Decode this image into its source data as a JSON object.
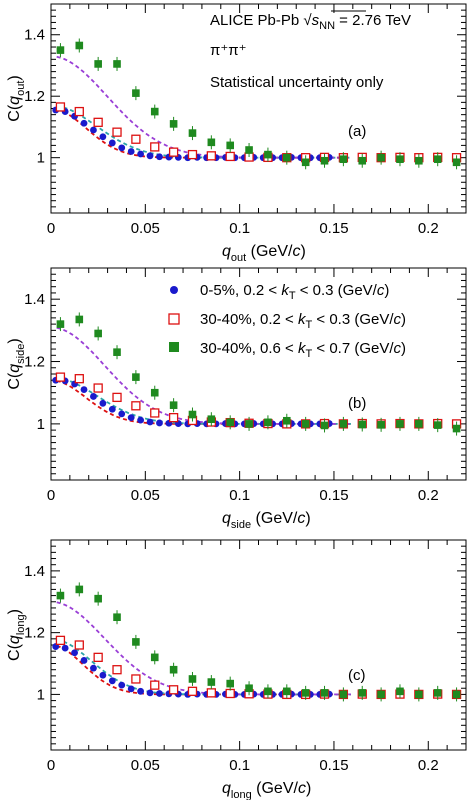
{
  "header": {
    "line1_prefix": "ALICE Pb-Pb ",
    "sqrt_symbol": "√",
    "sqrt_s": "s",
    "sqrt_sub": "NN",
    "line1_suffix": " = 2.76 TeV",
    "line2": "π⁺π⁺",
    "line3": "Statistical uncertainty only"
  },
  "legend": [
    {
      "label": "0-5%, 0.2 < ",
      "kt": "k",
      "kt_sub": "T",
      "range": " < 0.3 (GeV/",
      "c": "c",
      "close": ")",
      "marker": "filled-circle",
      "color": "#1a1acc"
    },
    {
      "label": "30-40%, 0.2 < ",
      "kt": "k",
      "kt_sub": "T",
      "range": " < 0.3 (GeV/",
      "c": "c",
      "close": ")",
      "marker": "open-square",
      "color": "#dd1111"
    },
    {
      "label": "30-40%, 0.6 < ",
      "kt": "k",
      "kt_sub": "T",
      "range": " < 0.7 (GeV/",
      "c": "c",
      "close": ")",
      "marker": "filled-square",
      "color": "#1f8a1f"
    }
  ],
  "colors": {
    "series0": "#1a1acc",
    "series1": "#dd1111",
    "series2": "#1f8a1f",
    "fit_cyan": "#2aa5a8",
    "fit_violet": "#9a3fd6",
    "fit_red": "#dd1111"
  },
  "chart_data": [
    {
      "type": "scatter",
      "panel_tag": "(a)",
      "ylabel": {
        "main": "C(",
        "var": "q",
        "sub": "out",
        "close": ")"
      },
      "xlabel": {
        "var": "q",
        "sub": "out",
        "unit": " (GeV/",
        "c": "c",
        "close": ")"
      },
      "xlim": [
        0,
        0.22
      ],
      "ylim": [
        0.82,
        1.5
      ],
      "xticks": [
        "0",
        "0.05",
        "0.1",
        "0.15",
        "0.2"
      ],
      "xtick_values": [
        0,
        0.05,
        0.1,
        0.15,
        0.2
      ],
      "yticks": [
        "1",
        "1.2",
        "1.4"
      ],
      "ytick_values": [
        1.0,
        1.2,
        1.4
      ],
      "series": [
        {
          "marker": "filled-circle",
          "color": "#1a1acc",
          "x": [
            0.0025,
            0.0075,
            0.0125,
            0.0175,
            0.0225,
            0.0275,
            0.0325,
            0.0375,
            0.0425,
            0.0475,
            0.0525,
            0.0575,
            0.0625,
            0.0675,
            0.0725,
            0.0775,
            0.0825,
            0.0875,
            0.0925,
            0.0975,
            0.1025,
            0.1075,
            0.1125,
            0.1175,
            0.1225,
            0.1275,
            0.1325,
            0.1375,
            0.1425,
            0.1475
          ],
          "y": [
            1.155,
            1.15,
            1.135,
            1.112,
            1.09,
            1.068,
            1.048,
            1.032,
            1.02,
            1.012,
            1.006,
            1.003,
            1.002,
            1.001,
            1.0,
            1.001,
            1.0,
            1.0,
            1.001,
            1.0,
            1.0,
            1.001,
            1.0,
            1.0,
            1.0,
            1.001,
            1.0,
            1.0,
            1.0,
            1.001
          ]
        },
        {
          "marker": "open-square",
          "color": "#dd1111",
          "x": [
            0.005,
            0.015,
            0.025,
            0.035,
            0.045,
            0.055,
            0.065,
            0.075,
            0.085,
            0.095,
            0.105,
            0.115,
            0.125,
            0.135,
            0.145,
            0.155,
            0.165,
            0.175,
            0.185,
            0.195,
            0.205,
            0.215
          ],
          "y": [
            1.165,
            1.15,
            1.115,
            1.083,
            1.06,
            1.035,
            1.018,
            1.01,
            1.006,
            1.004,
            1.002,
            1.001,
            1.0,
            1.0,
            1.001,
            1.0,
            1.001,
            1.0,
            1.001,
            1.0,
            1.001,
            1.0
          ]
        },
        {
          "marker": "filled-square",
          "color": "#1f8a1f",
          "x": [
            0.005,
            0.015,
            0.025,
            0.035,
            0.045,
            0.055,
            0.065,
            0.075,
            0.085,
            0.095,
            0.105,
            0.115,
            0.125,
            0.135,
            0.145,
            0.155,
            0.165,
            0.175,
            0.185,
            0.195,
            0.205,
            0.215
          ],
          "y": [
            1.35,
            1.365,
            1.305,
            1.305,
            1.21,
            1.15,
            1.11,
            1.08,
            1.05,
            1.04,
            1.025,
            1.01,
            1.0,
            0.985,
            0.99,
            0.995,
            0.99,
            1.0,
            0.995,
            0.99,
            0.995,
            0.985
          ]
        }
      ],
      "fits": [
        {
          "color": "#dd1111",
          "y0": 1.16,
          "r": 0.026
        },
        {
          "color": "#2aa5a8",
          "y0": 1.17,
          "r": 0.034
        },
        {
          "color": "#9a3fd6",
          "y0": 1.33,
          "r": 0.042
        }
      ]
    },
    {
      "type": "scatter",
      "panel_tag": "(b)",
      "ylabel": {
        "main": "C(",
        "var": "q",
        "sub": "side",
        "close": ")"
      },
      "xlabel": {
        "var": "q",
        "sub": "side",
        "unit": " (GeV/",
        "c": "c",
        "close": ")"
      },
      "xlim": [
        0,
        0.22
      ],
      "ylim": [
        0.82,
        1.5
      ],
      "xticks": [
        "0",
        "0.05",
        "0.1",
        "0.15",
        "0.2"
      ],
      "xtick_values": [
        0,
        0.05,
        0.1,
        0.15,
        0.2
      ],
      "yticks": [
        "1",
        "1.2",
        "1.4"
      ],
      "ytick_values": [
        1.0,
        1.2,
        1.4
      ],
      "series": [
        {
          "marker": "filled-circle",
          "color": "#1a1acc",
          "x": [
            0.0025,
            0.0075,
            0.0125,
            0.0175,
            0.0225,
            0.0275,
            0.0325,
            0.0375,
            0.0425,
            0.0475,
            0.0525,
            0.0575,
            0.0625,
            0.0675,
            0.0725,
            0.0775,
            0.0825,
            0.0875,
            0.0925,
            0.0975,
            0.1025,
            0.1075,
            0.1125,
            0.1175,
            0.1225,
            0.1275,
            0.1325,
            0.1375,
            0.1425,
            0.1475
          ],
          "y": [
            1.14,
            1.138,
            1.128,
            1.11,
            1.088,
            1.066,
            1.047,
            1.032,
            1.02,
            1.012,
            1.006,
            1.003,
            1.002,
            1.001,
            1.0,
            1.001,
            1.0,
            1.0,
            1.001,
            1.0,
            1.0,
            1.001,
            1.0,
            1.0,
            1.0,
            1.001,
            1.0,
            1.0,
            1.0,
            1.001
          ]
        },
        {
          "marker": "open-square",
          "color": "#dd1111",
          "x": [
            0.005,
            0.015,
            0.025,
            0.035,
            0.045,
            0.055,
            0.065,
            0.075,
            0.085,
            0.095,
            0.105,
            0.115,
            0.125,
            0.135,
            0.145,
            0.155,
            0.165,
            0.175,
            0.185,
            0.195,
            0.205,
            0.215
          ],
          "y": [
            1.15,
            1.145,
            1.115,
            1.085,
            1.058,
            1.035,
            1.02,
            1.011,
            1.006,
            1.004,
            1.002,
            1.001,
            1.0,
            1.0,
            1.001,
            1.0,
            1.001,
            1.0,
            1.001,
            1.0,
            1.001,
            1.0
          ]
        },
        {
          "marker": "filled-square",
          "color": "#1f8a1f",
          "x": [
            0.005,
            0.015,
            0.025,
            0.035,
            0.045,
            0.055,
            0.065,
            0.075,
            0.085,
            0.095,
            0.105,
            0.115,
            0.125,
            0.135,
            0.145,
            0.155,
            0.165,
            0.175,
            0.185,
            0.195,
            0.205,
            0.215
          ],
          "y": [
            1.32,
            1.335,
            1.29,
            1.23,
            1.15,
            1.1,
            1.06,
            1.03,
            1.015,
            1.005,
            1.0,
            1.005,
            1.01,
            1.0,
            0.995,
            1.0,
            0.998,
            0.997,
            1.0,
            1.0,
            0.996,
            0.985
          ]
        }
      ],
      "fits": [
        {
          "color": "#dd1111",
          "y0": 1.14,
          "r": 0.026
        },
        {
          "color": "#2aa5a8",
          "y0": 1.15,
          "r": 0.034
        },
        {
          "color": "#9a3fd6",
          "y0": 1.31,
          "r": 0.04
        }
      ]
    },
    {
      "type": "scatter",
      "panel_tag": "(c)",
      "ylabel": {
        "main": "C(",
        "var": "q",
        "sub": "long",
        "close": ")"
      },
      "xlabel": {
        "var": "q",
        "sub": "long",
        "unit": " (GeV/",
        "c": "c",
        "close": ")"
      },
      "xlim": [
        0,
        0.22
      ],
      "ylim": [
        0.82,
        1.5
      ],
      "xticks": [
        "0",
        "0.05",
        "0.1",
        "0.15",
        "0.2"
      ],
      "xtick_values": [
        0,
        0.05,
        0.1,
        0.15,
        0.2
      ],
      "yticks": [
        "1",
        "1.2",
        "1.4"
      ],
      "ytick_values": [
        1.0,
        1.2,
        1.4
      ],
      "series": [
        {
          "marker": "filled-circle",
          "color": "#1a1acc",
          "x": [
            0.0025,
            0.0075,
            0.0125,
            0.0175,
            0.0225,
            0.0275,
            0.0325,
            0.0375,
            0.0425,
            0.0475,
            0.0525,
            0.0575,
            0.0625,
            0.0675,
            0.0725,
            0.0775,
            0.0825,
            0.0875,
            0.0925,
            0.0975,
            0.1025,
            0.1075,
            0.1125,
            0.1175,
            0.1225,
            0.1275,
            0.1325,
            0.1375,
            0.1425,
            0.1475
          ],
          "y": [
            1.155,
            1.15,
            1.135,
            1.11,
            1.085,
            1.062,
            1.044,
            1.03,
            1.018,
            1.01,
            1.005,
            1.003,
            1.002,
            1.001,
            1.0,
            1.001,
            1.0,
            1.0,
            1.001,
            1.0,
            1.0,
            1.001,
            1.0,
            1.0,
            1.0,
            1.001,
            1.0,
            1.0,
            1.0,
            1.001
          ]
        },
        {
          "marker": "open-square",
          "color": "#dd1111",
          "x": [
            0.005,
            0.015,
            0.025,
            0.035,
            0.045,
            0.055,
            0.065,
            0.075,
            0.085,
            0.095,
            0.105,
            0.115,
            0.125,
            0.135,
            0.145,
            0.155,
            0.165,
            0.175,
            0.185,
            0.195,
            0.205,
            0.215
          ],
          "y": [
            1.175,
            1.16,
            1.12,
            1.08,
            1.05,
            1.03,
            1.015,
            1.01,
            1.005,
            1.003,
            1.002,
            1.001,
            1.0,
            1.0,
            1.001,
            1.0,
            1.001,
            1.0,
            1.001,
            1.0,
            1.001,
            1.0
          ]
        },
        {
          "marker": "filled-square",
          "color": "#1f8a1f",
          "x": [
            0.005,
            0.015,
            0.025,
            0.035,
            0.045,
            0.055,
            0.065,
            0.075,
            0.085,
            0.095,
            0.105,
            0.115,
            0.125,
            0.135,
            0.145,
            0.155,
            0.165,
            0.175,
            0.185,
            0.195,
            0.205,
            0.215
          ],
          "y": [
            1.32,
            1.34,
            1.31,
            1.25,
            1.17,
            1.12,
            1.08,
            1.05,
            1.04,
            1.035,
            1.02,
            1.01,
            1.01,
            1.005,
            1.005,
            1.0,
            1.005,
            1.0,
            1.01,
            1.0,
            1.005,
            1.0
          ]
        }
      ],
      "fits": [
        {
          "color": "#dd1111",
          "y0": 1.16,
          "r": 0.024
        },
        {
          "color": "#2aa5a8",
          "y0": 1.18,
          "r": 0.03
        },
        {
          "color": "#9a3fd6",
          "y0": 1.3,
          "r": 0.04
        }
      ]
    }
  ]
}
